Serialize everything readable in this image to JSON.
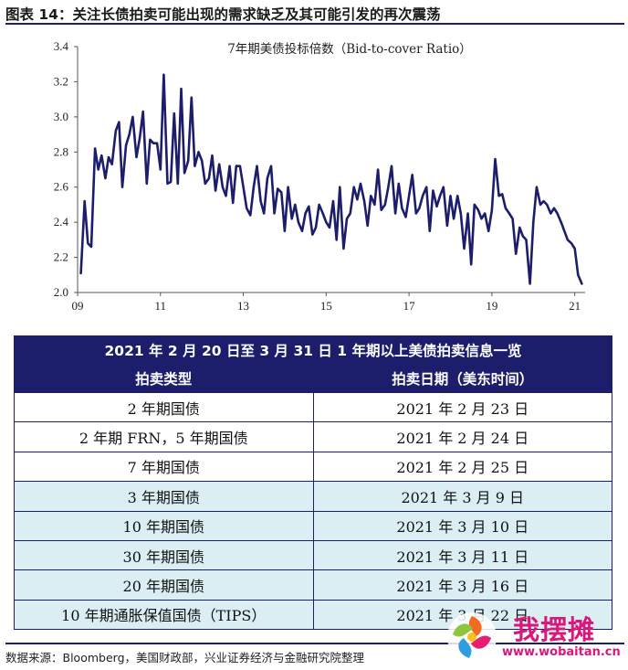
{
  "figure": {
    "title": "图表 14：关注长债拍卖可能出现的需求缺乏及其可能引发的再次震荡",
    "source": "数据来源：Bloomberg，美国财政部，兴业证券经济与金融研究院整理"
  },
  "chart_data": {
    "type": "line",
    "title": "7年期美债投标倍数（Bid-to-cover Ratio）",
    "xlabel": "",
    "ylabel": "",
    "x_tick_labels": [
      "09",
      "11",
      "13",
      "15",
      "17",
      "19",
      "21"
    ],
    "x_ticks": [
      2009,
      2011,
      2013,
      2015,
      2017,
      2019,
      2021
    ],
    "y_ticks": [
      2.0,
      2.2,
      2.4,
      2.6,
      2.8,
      3.0,
      3.2,
      3.4
    ],
    "y_tick_labels": [
      "2.0",
      "2.2",
      "2.4",
      "2.6",
      "2.8",
      "3.0",
      "3.2",
      "3.4"
    ],
    "xlim": [
      2009,
      2021.25
    ],
    "ylim": [
      2.0,
      3.4
    ],
    "line_color": "#1c1d6b",
    "series": [
      {
        "name": "7年期美债投标倍数",
        "x": [
          2009.08,
          2009.17,
          2009.25,
          2009.33,
          2009.42,
          2009.5,
          2009.58,
          2009.67,
          2009.75,
          2009.83,
          2009.92,
          2010.0,
          2010.08,
          2010.17,
          2010.25,
          2010.33,
          2010.42,
          2010.5,
          2010.58,
          2010.67,
          2010.75,
          2010.83,
          2010.92,
          2011.0,
          2011.08,
          2011.17,
          2011.25,
          2011.33,
          2011.42,
          2011.5,
          2011.58,
          2011.67,
          2011.75,
          2011.83,
          2011.92,
          2012.0,
          2012.08,
          2012.17,
          2012.25,
          2012.33,
          2012.42,
          2012.5,
          2012.58,
          2012.67,
          2012.75,
          2012.83,
          2012.92,
          2013.0,
          2013.08,
          2013.17,
          2013.25,
          2013.33,
          2013.42,
          2013.5,
          2013.58,
          2013.67,
          2013.75,
          2013.83,
          2013.92,
          2014.0,
          2014.08,
          2014.17,
          2014.25,
          2014.33,
          2014.42,
          2014.5,
          2014.58,
          2014.67,
          2014.75,
          2014.83,
          2014.92,
          2015.0,
          2015.08,
          2015.17,
          2015.25,
          2015.33,
          2015.42,
          2015.5,
          2015.58,
          2015.67,
          2015.75,
          2015.83,
          2015.92,
          2016.0,
          2016.08,
          2016.17,
          2016.25,
          2016.33,
          2016.42,
          2016.5,
          2016.58,
          2016.67,
          2016.75,
          2016.83,
          2016.92,
          2017.0,
          2017.08,
          2017.17,
          2017.25,
          2017.33,
          2017.42,
          2017.5,
          2017.58,
          2017.67,
          2017.75,
          2017.83,
          2017.92,
          2018.0,
          2018.08,
          2018.17,
          2018.25,
          2018.33,
          2018.42,
          2018.5,
          2018.58,
          2018.67,
          2018.75,
          2018.83,
          2018.92,
          2019.0,
          2019.08,
          2019.17,
          2019.25,
          2019.33,
          2019.42,
          2019.5,
          2019.58,
          2019.67,
          2019.75,
          2019.83,
          2019.92,
          2020.0,
          2020.08,
          2020.17,
          2020.25,
          2020.33,
          2020.42,
          2020.5,
          2020.58,
          2020.67,
          2020.75,
          2020.83,
          2020.92,
          2021.0,
          2021.08,
          2021.17
        ],
        "values": [
          2.11,
          2.52,
          2.28,
          2.26,
          2.82,
          2.7,
          2.78,
          2.65,
          2.77,
          2.73,
          2.92,
          2.97,
          2.6,
          2.84,
          2.9,
          3.0,
          2.77,
          2.88,
          3.03,
          2.62,
          2.87,
          2.85,
          2.85,
          2.7,
          3.24,
          2.62,
          2.63,
          3.02,
          2.62,
          3.16,
          2.68,
          2.75,
          3.11,
          2.72,
          2.8,
          2.75,
          2.62,
          2.65,
          2.78,
          2.58,
          2.73,
          2.6,
          2.55,
          2.72,
          2.51,
          2.72,
          2.72,
          2.6,
          2.48,
          2.44,
          2.6,
          2.72,
          2.52,
          2.45,
          2.65,
          2.72,
          2.45,
          2.59,
          2.57,
          2.35,
          2.6,
          2.42,
          2.5,
          2.4,
          2.35,
          2.45,
          2.49,
          2.33,
          2.37,
          2.5,
          2.45,
          2.4,
          2.37,
          2.52,
          2.3,
          2.6,
          2.25,
          2.42,
          2.45,
          2.6,
          2.53,
          2.62,
          2.52,
          2.38,
          2.55,
          2.5,
          2.7,
          2.47,
          2.5,
          2.6,
          2.72,
          2.45,
          2.62,
          2.48,
          2.43,
          2.55,
          2.67,
          2.45,
          2.48,
          2.55,
          2.6,
          2.35,
          2.58,
          2.49,
          2.55,
          2.6,
          2.38,
          2.55,
          2.42,
          2.55,
          2.45,
          2.25,
          2.45,
          2.16,
          2.5,
          2.47,
          2.42,
          2.45,
          2.35,
          2.47,
          2.76,
          2.55,
          2.56,
          2.48,
          2.45,
          2.42,
          2.22,
          2.37,
          2.32,
          2.3,
          2.05,
          2.4,
          2.6,
          2.5,
          2.52,
          2.5,
          2.45,
          2.48,
          2.45,
          2.4,
          2.35,
          2.3,
          2.28,
          2.25,
          2.1,
          2.05
        ]
      }
    ]
  },
  "table": {
    "caption": "2021 年 2 月 20 日至 3 月 31 日 1 年期以上美债拍卖信息一览",
    "headers": [
      "拍卖类型",
      "拍卖日期（美东时间）"
    ],
    "rows": [
      [
        "2 年期国债",
        "2021 年 2 月 23 日"
      ],
      [
        "2 年期 FRN，5 年期国债",
        "2021 年 2 月 24 日"
      ],
      [
        "7 年期国债",
        "2021 年 2 月 25 日"
      ],
      [
        "3 年期国债",
        "2021 年 3 月 9 日"
      ],
      [
        "10 年期国债",
        "2021 年 3 月 10 日"
      ],
      [
        "30 年期国债",
        "2021 年 3 月 11 日"
      ],
      [
        "20 年期国债",
        "2021 年 3 月 16 日"
      ],
      [
        "10 年期通胀保值国债（TIPS）",
        "2021 年 3 月 22 日"
      ]
    ]
  },
  "watermark": {
    "brand": "我摆摊",
    "url": "www.wobaitan.cn"
  }
}
